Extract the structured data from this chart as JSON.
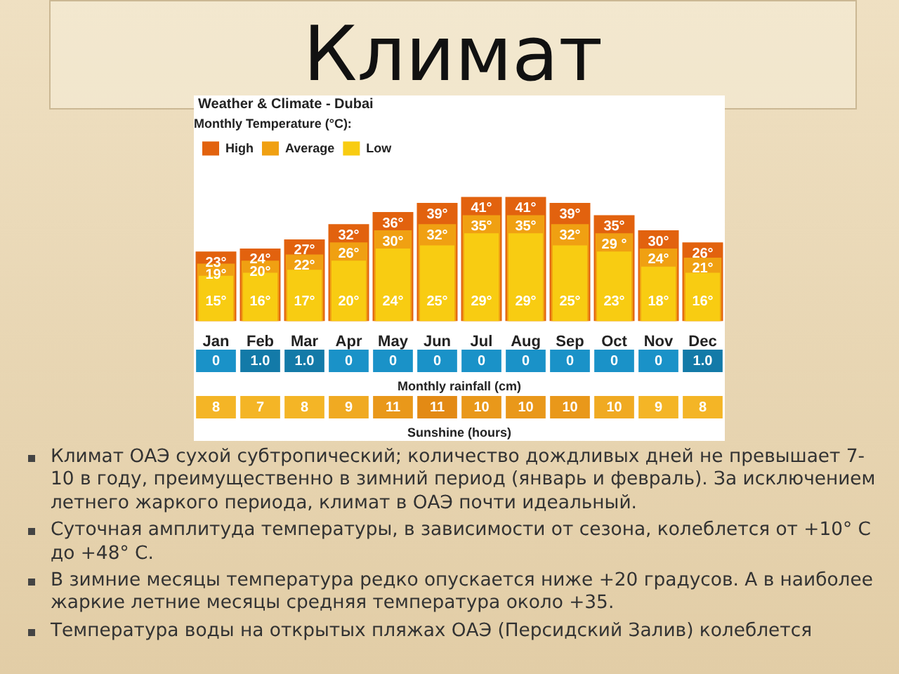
{
  "chart_data": [
    {
      "type": "bar",
      "title": "Климат",
      "subtitle": "Weather & Climate - Dubai",
      "legend_title": "Monthly Temperature (°C):",
      "legend": "top left",
      "grid": false,
      "categories": [
        "Jan",
        "Feb",
        "Mar",
        "Apr",
        "May",
        "Jun",
        "Jul",
        "Aug",
        "Sep",
        "Oct",
        "Nov",
        "Dec"
      ],
      "series": [
        {
          "name": "High",
          "color": "#e2620e",
          "values": [
            23,
            24,
            27,
            32,
            36,
            39,
            41,
            41,
            39,
            35,
            30,
            26
          ],
          "value_labels": [
            "23°",
            "24°",
            "27°",
            "32°",
            "36°",
            "39°",
            "41°",
            "41°",
            "39°",
            "35°",
            "30°",
            "26°"
          ]
        },
        {
          "name": "Average",
          "color": "#f0a012",
          "values": [
            19,
            20,
            22,
            26,
            30,
            32,
            35,
            35,
            32,
            29,
            24,
            21
          ],
          "value_labels": [
            "19°",
            "20°",
            "22°",
            "26°",
            "30°",
            "32°",
            "35°",
            "35°",
            "32°",
            "29 °",
            "24°",
            "21°"
          ]
        },
        {
          "name": "Low",
          "color": "#f8cc12",
          "values": [
            15,
            16,
            17,
            20,
            24,
            25,
            29,
            29,
            25,
            23,
            18,
            16
          ],
          "value_labels": [
            "15°",
            "16°",
            "17°",
            "20°",
            "24°",
            "25°",
            "29°",
            "29°",
            "25°",
            "23°",
            "18°",
            "16°"
          ]
        }
      ],
      "annotations": [
        "Климат ОАЭ сухой субтропический; количество дождливых дней не превышает 7-10 в году, преимущественно в зимний период (январь и февраль). За исключением летнего жаркого периода, климат в ОАЭ почти идеальный.",
        "Суточная амплитуда температуры, в зависимости от сезона, колеблется от +10° C до +48° C.",
        "В зимние месяцы температура редко опускается ниже +20 градусов. А в наиболее жаркие летние месяцы средняя температура около +35.",
        "Температура воды на открытых пляжах ОАЭ (Персидский Залив) колеблется"
      ]
    },
    {
      "type": "other",
      "xlabel": "Monthly rainfall (cm)",
      "values": [
        0,
        1.0,
        1.0,
        0,
        0,
        0,
        0,
        0,
        0,
        0,
        0,
        1.0
      ],
      "value_labels": [
        "0",
        "1.0",
        "1.0",
        "0",
        "0",
        "0",
        "0",
        "0",
        "0",
        "0",
        "0",
        "1.0"
      ],
      "colors": [
        "#1a92c8",
        "#137aa8",
        "#137aa8",
        "#1a92c8",
        "#1a92c8",
        "#1a92c8",
        "#1a92c8",
        "#1a92c8",
        "#1a92c8",
        "#1a92c8",
        "#1a92c8",
        "#137aa8"
      ]
    },
    {
      "type": "other",
      "xlabel": "Sunshine (hours)",
      "values": [
        8,
        7,
        8,
        9,
        11,
        11,
        10,
        10,
        10,
        10,
        9,
        8
      ],
      "value_labels": [
        "8",
        "7",
        "8",
        "9",
        "11",
        "11",
        "10",
        "10",
        "10",
        "10",
        "9",
        "8"
      ],
      "colors": [
        "#f4b526",
        "#f4b526",
        "#f4b526",
        "#f0aa22",
        "#e9981a",
        "#e38a14",
        "#e9981a",
        "#e9981a",
        "#e9981a",
        "#f0aa22",
        "#f4b526",
        "#f4b526"
      ]
    }
  ]
}
